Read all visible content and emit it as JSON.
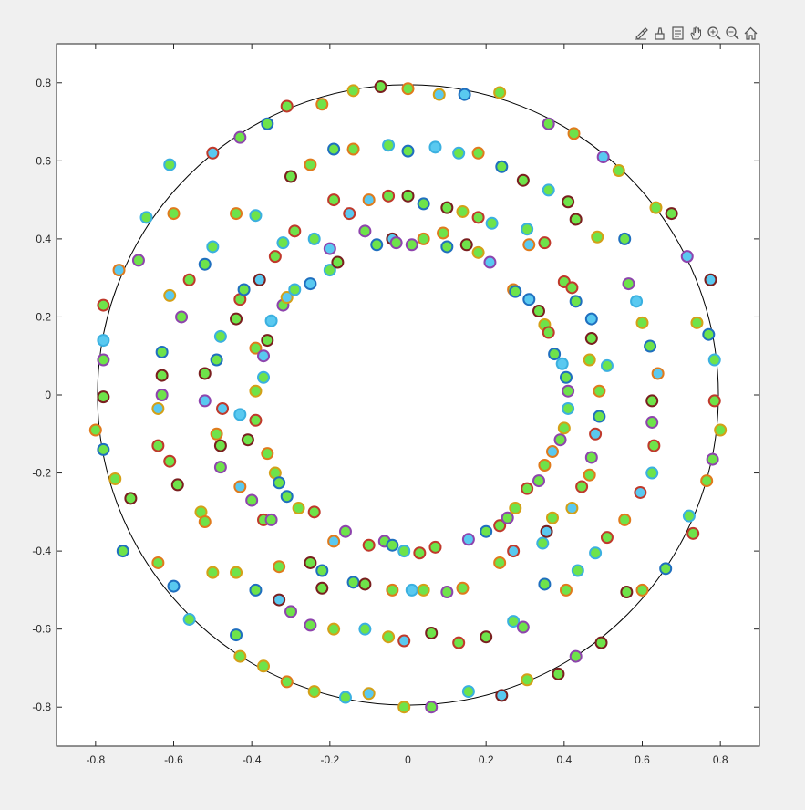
{
  "toolbar": {
    "icons": [
      "brush-icon",
      "data-tips-icon",
      "insert-icon",
      "pan-icon",
      "zoom-in-icon",
      "zoom-out-icon",
      "home-icon"
    ]
  },
  "colors": {
    "axes_bg": "#ffffff",
    "figure_bg": "#f0f0f0",
    "axis": "#262626",
    "circle": "#000000",
    "marker_face": "#6ee34a",
    "marker_face_alt": "#59c9f0",
    "edge_palette": [
      "#e07a1c",
      "#c0392b",
      "#8e44ad",
      "#1f6fbf",
      "#d4a017",
      "#3bb0e0",
      "#7a1f1f"
    ]
  },
  "chart_data": {
    "type": "scatter",
    "title": "",
    "xlabel": "",
    "ylabel": "",
    "xlim": [
      -0.9,
      0.9
    ],
    "ylim": [
      -0.9,
      0.9
    ],
    "xticks": [
      "-0.8",
      "-0.6",
      "-0.4",
      "-0.2",
      "0",
      "0.2",
      "0.4",
      "0.6",
      "0.8"
    ],
    "yticks": [
      "0.8",
      "0.6",
      "0.4",
      "0.2",
      "0",
      "-0.2",
      "-0.4",
      "-0.6",
      "-0.8"
    ],
    "xtick_values": [
      -0.8,
      -0.6,
      -0.4,
      -0.2,
      0,
      0.2,
      0.4,
      0.6,
      0.8
    ],
    "ytick_values": [
      0.8,
      0.6,
      0.4,
      0.2,
      0,
      -0.2,
      -0.4,
      -0.6,
      -0.8
    ],
    "grid": false,
    "reference_circle": {
      "center": [
        0,
        0
      ],
      "radius": 0.795
    },
    "marker": "circle",
    "points": [
      [
        -0.8,
        -0.09
      ],
      [
        -0.78,
        -0.14
      ],
      [
        -0.78,
        -0.005
      ],
      [
        -0.78,
        0.09
      ],
      [
        -0.78,
        0.14
      ],
      [
        -0.78,
        0.23
      ],
      [
        -0.75,
        -0.215
      ],
      [
        -0.74,
        0.32
      ],
      [
        -0.73,
        -0.4
      ],
      [
        -0.71,
        -0.265
      ],
      [
        -0.69,
        0.345
      ],
      [
        -0.67,
        0.455
      ],
      [
        -0.64,
        -0.13
      ],
      [
        -0.64,
        -0.035
      ],
      [
        -0.64,
        -0.43
      ],
      [
        -0.63,
        0.11
      ],
      [
        -0.63,
        0.05
      ],
      [
        -0.63,
        0.0
      ],
      [
        -0.61,
        0.59
      ],
      [
        -0.61,
        -0.17
      ],
      [
        -0.61,
        0.255
      ],
      [
        -0.6,
        0.465
      ],
      [
        -0.6,
        -0.49
      ],
      [
        -0.59,
        -0.23
      ],
      [
        -0.58,
        0.2
      ],
      [
        -0.56,
        -0.575
      ],
      [
        -0.56,
        0.295
      ],
      [
        -0.53,
        -0.3
      ],
      [
        -0.52,
        -0.325
      ],
      [
        -0.52,
        0.335
      ],
      [
        -0.52,
        0.055
      ],
      [
        -0.52,
        -0.015
      ],
      [
        -0.5,
        0.38
      ],
      [
        -0.5,
        0.62
      ],
      [
        -0.5,
        -0.455
      ],
      [
        -0.49,
        -0.1
      ],
      [
        -0.49,
        0.09
      ],
      [
        -0.48,
        -0.13
      ],
      [
        -0.48,
        -0.185
      ],
      [
        -0.48,
        0.15
      ],
      [
        -0.475,
        -0.035
      ],
      [
        -0.44,
        -0.455
      ],
      [
        -0.44,
        0.465
      ],
      [
        -0.44,
        -0.615
      ],
      [
        -0.44,
        0.195
      ],
      [
        -0.43,
        0.66
      ],
      [
        -0.43,
        -0.05
      ],
      [
        -0.43,
        0.245
      ],
      [
        -0.43,
        -0.67
      ],
      [
        -0.43,
        -0.235
      ],
      [
        -0.42,
        0.27
      ],
      [
        -0.41,
        -0.115
      ],
      [
        -0.4,
        -0.27
      ],
      [
        -0.39,
        0.46
      ],
      [
        -0.39,
        -0.065
      ],
      [
        -0.39,
        0.01
      ],
      [
        -0.39,
        0.12
      ],
      [
        -0.39,
        -0.5
      ],
      [
        -0.38,
        0.295
      ],
      [
        -0.37,
        0.1
      ],
      [
        -0.37,
        0.045
      ],
      [
        -0.37,
        -0.32
      ],
      [
        -0.37,
        -0.695
      ],
      [
        -0.36,
        -0.15
      ],
      [
        -0.36,
        0.695
      ],
      [
        -0.36,
        0.14
      ],
      [
        -0.35,
        -0.32
      ],
      [
        -0.35,
        0.19
      ],
      [
        -0.34,
        0.355
      ],
      [
        -0.34,
        -0.2
      ],
      [
        -0.33,
        -0.44
      ],
      [
        -0.33,
        -0.225
      ],
      [
        -0.33,
        -0.525
      ],
      [
        -0.32,
        0.23
      ],
      [
        -0.32,
        0.39
      ],
      [
        -0.31,
        0.74
      ],
      [
        -0.31,
        0.25
      ],
      [
        -0.31,
        -0.735
      ],
      [
        -0.31,
        -0.26
      ],
      [
        -0.3,
        0.56
      ],
      [
        -0.3,
        -0.555
      ],
      [
        -0.29,
        0.27
      ],
      [
        -0.29,
        0.42
      ],
      [
        -0.28,
        -0.29
      ],
      [
        -0.25,
        0.59
      ],
      [
        -0.25,
        0.285
      ],
      [
        -0.25,
        -0.43
      ],
      [
        -0.25,
        -0.59
      ],
      [
        -0.24,
        0.4
      ],
      [
        -0.24,
        -0.3
      ],
      [
        -0.24,
        -0.76
      ],
      [
        -0.22,
        0.745
      ],
      [
        -0.22,
        -0.45
      ],
      [
        -0.22,
        -0.495
      ],
      [
        -0.2,
        0.375
      ],
      [
        -0.2,
        0.32
      ],
      [
        -0.19,
        0.5
      ],
      [
        -0.19,
        -0.6
      ],
      [
        -0.19,
        -0.375
      ],
      [
        -0.19,
        0.63
      ],
      [
        -0.18,
        0.34
      ],
      [
        -0.16,
        -0.35
      ],
      [
        -0.16,
        -0.775
      ],
      [
        -0.15,
        0.465
      ],
      [
        -0.14,
        0.78
      ],
      [
        -0.14,
        0.63
      ],
      [
        -0.14,
        -0.48
      ],
      [
        -0.11,
        -0.485
      ],
      [
        -0.11,
        0.42
      ],
      [
        -0.11,
        -0.6
      ],
      [
        -0.1,
        -0.385
      ],
      [
        -0.1,
        -0.765
      ],
      [
        -0.1,
        0.5
      ],
      [
        -0.08,
        0.385
      ],
      [
        -0.07,
        0.79
      ],
      [
        -0.06,
        -0.375
      ],
      [
        -0.05,
        0.64
      ],
      [
        -0.05,
        0.51
      ],
      [
        -0.05,
        -0.62
      ],
      [
        -0.04,
        -0.5
      ],
      [
        -0.04,
        -0.385
      ],
      [
        -0.04,
        0.4
      ],
      [
        -0.03,
        0.39
      ],
      [
        -0.01,
        -0.4
      ],
      [
        -0.01,
        -0.63
      ],
      [
        -0.01,
        -0.8
      ],
      [
        0.0,
        0.785
      ],
      [
        0.0,
        0.625
      ],
      [
        0.0,
        0.51
      ],
      [
        0.01,
        0.385
      ],
      [
        0.01,
        -0.5
      ],
      [
        0.03,
        -0.405
      ],
      [
        0.04,
        -0.5
      ],
      [
        0.04,
        0.4
      ],
      [
        0.04,
        0.49
      ],
      [
        0.06,
        -0.61
      ],
      [
        0.06,
        -0.8
      ],
      [
        0.07,
        0.635
      ],
      [
        0.07,
        -0.39
      ],
      [
        0.08,
        0.77
      ],
      [
        0.09,
        0.415
      ],
      [
        0.1,
        0.38
      ],
      [
        0.1,
        0.48
      ],
      [
        0.1,
        -0.505
      ],
      [
        0.13,
        0.62
      ],
      [
        0.13,
        -0.635
      ],
      [
        0.14,
        0.47
      ],
      [
        0.14,
        -0.495
      ],
      [
        0.145,
        0.77
      ],
      [
        0.15,
        0.385
      ],
      [
        0.155,
        -0.37
      ],
      [
        0.155,
        -0.76
      ],
      [
        0.18,
        0.455
      ],
      [
        0.18,
        0.365
      ],
      [
        0.18,
        0.62
      ],
      [
        0.2,
        -0.35
      ],
      [
        0.2,
        -0.62
      ],
      [
        0.21,
        0.34
      ],
      [
        0.215,
        0.44
      ],
      [
        0.235,
        -0.335
      ],
      [
        0.235,
        0.775
      ],
      [
        0.235,
        -0.43
      ],
      [
        0.24,
        0.585
      ],
      [
        0.24,
        -0.77
      ],
      [
        0.255,
        -0.315
      ],
      [
        0.27,
        -0.58
      ],
      [
        0.27,
        -0.4
      ],
      [
        0.275,
        -0.29
      ],
      [
        0.27,
        0.27
      ],
      [
        0.275,
        0.265
      ],
      [
        0.295,
        0.55
      ],
      [
        0.295,
        -0.595
      ],
      [
        0.305,
        0.425
      ],
      [
        0.305,
        -0.24
      ],
      [
        0.305,
        -0.73
      ],
      [
        0.31,
        0.385
      ],
      [
        0.31,
        0.245
      ],
      [
        0.335,
        0.215
      ],
      [
        0.335,
        -0.22
      ],
      [
        0.345,
        -0.38
      ],
      [
        0.35,
        0.39
      ],
      [
        0.35,
        0.18
      ],
      [
        0.35,
        -0.18
      ],
      [
        0.35,
        -0.485
      ],
      [
        0.355,
        -0.35
      ],
      [
        0.36,
        0.695
      ],
      [
        0.36,
        0.525
      ],
      [
        0.36,
        0.16
      ],
      [
        0.37,
        -0.315
      ],
      [
        0.37,
        -0.145
      ],
      [
        0.375,
        0.105
      ],
      [
        0.385,
        -0.715
      ],
      [
        0.39,
        -0.115
      ],
      [
        0.395,
        0.08
      ],
      [
        0.4,
        0.29
      ],
      [
        0.4,
        -0.085
      ],
      [
        0.405,
        -0.5
      ],
      [
        0.405,
        0.045
      ],
      [
        0.41,
        0.495
      ],
      [
        0.41,
        0.01
      ],
      [
        0.41,
        -0.035
      ],
      [
        0.42,
        0.275
      ],
      [
        0.42,
        -0.29
      ],
      [
        0.425,
        0.67
      ],
      [
        0.43,
        0.24
      ],
      [
        0.43,
        0.45
      ],
      [
        0.43,
        -0.67
      ],
      [
        0.435,
        -0.45
      ],
      [
        0.445,
        -0.235
      ],
      [
        0.465,
        0.09
      ],
      [
        0.465,
        -0.205
      ],
      [
        0.47,
        0.195
      ],
      [
        0.47,
        0.145
      ],
      [
        0.47,
        -0.16
      ],
      [
        0.48,
        -0.405
      ],
      [
        0.48,
        -0.1
      ],
      [
        0.485,
        0.405
      ],
      [
        0.49,
        0.01
      ],
      [
        0.49,
        -0.055
      ],
      [
        0.495,
        -0.635
      ],
      [
        0.5,
        0.61
      ],
      [
        0.51,
        0.075
      ],
      [
        0.51,
        -0.365
      ],
      [
        0.54,
        0.575
      ],
      [
        0.555,
        -0.32
      ],
      [
        0.555,
        0.4
      ],
      [
        0.56,
        -0.505
      ],
      [
        0.565,
        0.285
      ],
      [
        0.585,
        0.24
      ],
      [
        0.595,
        -0.25
      ],
      [
        0.6,
        0.185
      ],
      [
        0.6,
        -0.5
      ],
      [
        0.62,
        0.125
      ],
      [
        0.625,
        -0.015
      ],
      [
        0.625,
        -0.07
      ],
      [
        0.625,
        -0.2
      ],
      [
        0.63,
        -0.13
      ],
      [
        0.635,
        0.48
      ],
      [
        0.64,
        0.055
      ],
      [
        0.66,
        -0.445
      ],
      [
        0.675,
        0.465
      ],
      [
        0.715,
        0.355
      ],
      [
        0.72,
        -0.31
      ],
      [
        0.73,
        -0.355
      ],
      [
        0.74,
        0.185
      ],
      [
        0.765,
        -0.22
      ],
      [
        0.77,
        0.155
      ],
      [
        0.775,
        0.295
      ],
      [
        0.78,
        -0.165
      ],
      [
        0.785,
        0.09
      ],
      [
        0.785,
        -0.015
      ],
      [
        0.8,
        -0.09
      ]
    ]
  }
}
